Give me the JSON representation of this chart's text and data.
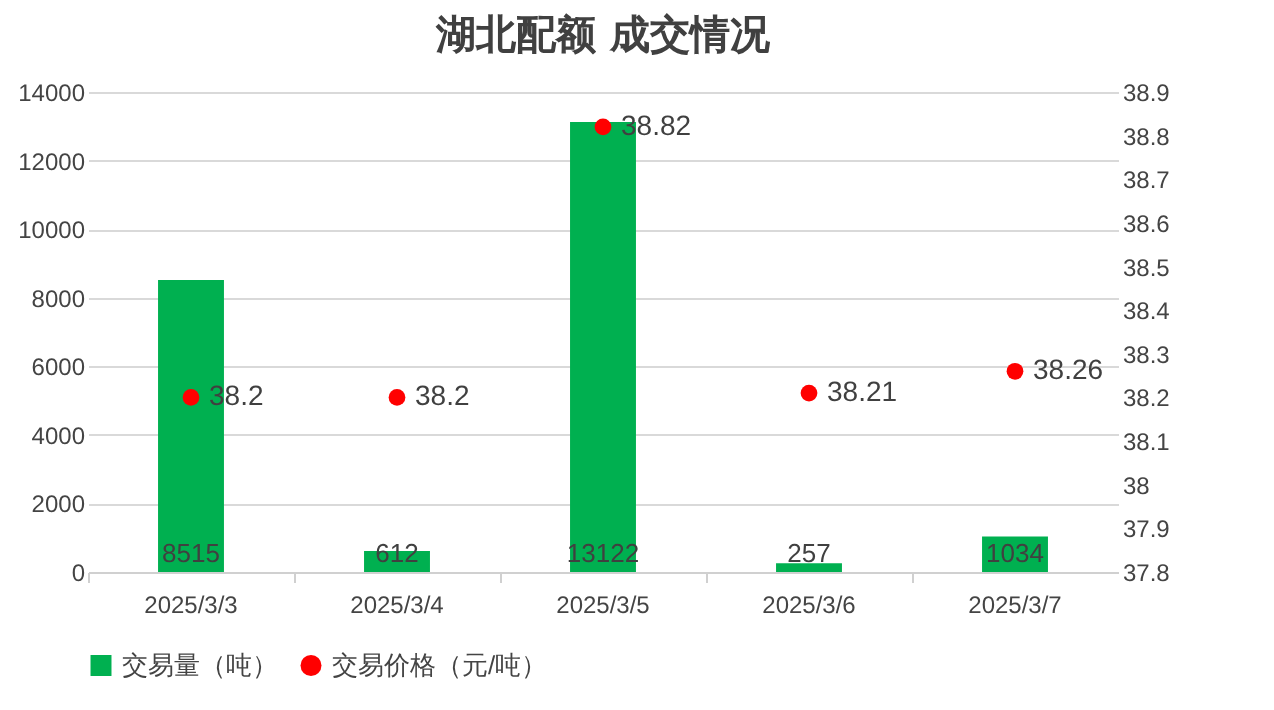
{
  "chart_data": {
    "type": "bar",
    "title": "湖北配额 成交情况",
    "categories": [
      "2025/3/3",
      "2025/3/4",
      "2025/3/5",
      "2025/3/6",
      "2025/3/7"
    ],
    "series": [
      {
        "name": "交易量（吨）",
        "type": "bar",
        "color": "#00b050",
        "values": [
          8515,
          612,
          13122,
          257,
          1034
        ]
      },
      {
        "name": "交易价格（元/吨）",
        "type": "scatter",
        "axis": "y2",
        "marker": "circle",
        "color": "#ff0000",
        "values": [
          38.2,
          38.2,
          38.82,
          38.21,
          38.26
        ]
      }
    ],
    "ylim": [
      0,
      14000
    ],
    "yticks": [
      0,
      2000,
      4000,
      6000,
      8000,
      10000,
      12000,
      14000
    ],
    "y2lim": [
      37.8,
      38.9
    ],
    "y2ticks": [
      37.8,
      37.9,
      38,
      38.1,
      38.2,
      38.3,
      38.4,
      38.5,
      38.6,
      38.7,
      38.8,
      38.9
    ],
    "grid": "y",
    "legend": "bottom",
    "data_labels": true
  }
}
